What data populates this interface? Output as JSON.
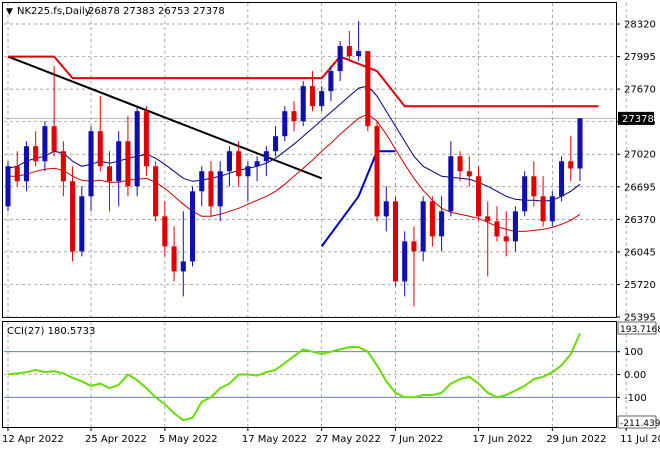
{
  "header": {
    "symbol": "NK225.fs,Daily",
    "ohlc": "26878 27383 26753 27378"
  },
  "cci_header": "CCI(27) 180.5733",
  "colors": {
    "up_candle": "#1010b0",
    "down_candle": "#e00000",
    "ma_fast": "#000080",
    "ma_slow": "#cc0000",
    "step_red": "#dd0000",
    "step_blue": "#0000cc",
    "trendline": "#000000",
    "cci_line": "#66dd00",
    "price_label_bg": "#000000"
  },
  "chart_data": [
    {
      "type": "candlestick",
      "ylim": [
        25395,
        28450
      ],
      "y_ticks": [
        28320,
        27995,
        27670,
        27345,
        27020,
        26695,
        26370,
        26045,
        25720,
        25395
      ],
      "x_labels": [
        "12 Apr 2022",
        "25 Apr 2022",
        "5 May 2022",
        "17 May 2022",
        "27 May 2022",
        "7 Jun 2022",
        "17 Jun 2022",
        "29 Jun 2022",
        "11 Jul 2022"
      ],
      "x_label_index": [
        0,
        9,
        17,
        26,
        34,
        42,
        51,
        59,
        67
      ],
      "current_price": "27378",
      "current_value": 27378,
      "candles": [
        [
          26500,
          26950,
          26450,
          26900
        ],
        [
          26900,
          27050,
          26700,
          26750
        ],
        [
          26750,
          27150,
          26650,
          27100
        ],
        [
          27100,
          27250,
          26900,
          26950
        ],
        [
          26950,
          27350,
          26850,
          27300
        ],
        [
          27300,
          27900,
          27000,
          27050
        ],
        [
          27050,
          27150,
          26600,
          26750
        ],
        [
          26750,
          26900,
          25950,
          26050
        ],
        [
          26050,
          26700,
          26000,
          26600
        ],
        [
          26600,
          27300,
          26450,
          27250
        ],
        [
          27250,
          27600,
          26850,
          26900
        ],
        [
          26900,
          27050,
          26450,
          26750
        ],
        [
          26750,
          27250,
          26500,
          27150
        ],
        [
          27150,
          27400,
          26600,
          26700
        ],
        [
          26700,
          27500,
          26600,
          27450
        ],
        [
          27450,
          27500,
          26800,
          26900
        ],
        [
          26900,
          26950,
          26350,
          26400
        ],
        [
          26400,
          26550,
          26000,
          26100
        ],
        [
          26100,
          26300,
          25750,
          25850
        ],
        [
          25850,
          26450,
          25600,
          25950
        ],
        [
          25950,
          26700,
          25900,
          26650
        ],
        [
          26650,
          26900,
          26500,
          26850
        ],
        [
          26850,
          26950,
          26400,
          26500
        ],
        [
          26500,
          26950,
          26350,
          26850
        ],
        [
          26850,
          27100,
          26700,
          27050
        ],
        [
          27050,
          27150,
          26700,
          26800
        ],
        [
          26800,
          26950,
          26550,
          26900
        ],
        [
          26900,
          27000,
          26750,
          26950
        ],
        [
          26950,
          27100,
          26800,
          27050
        ],
        [
          27050,
          27300,
          27000,
          27200
        ],
        [
          27200,
          27500,
          27150,
          27450
        ],
        [
          27450,
          27550,
          27250,
          27350
        ],
        [
          27350,
          27750,
          27300,
          27700
        ],
        [
          27700,
          27850,
          27450,
          27500
        ],
        [
          27500,
          27700,
          27450,
          27650
        ],
        [
          27650,
          27900,
          27550,
          27850
        ],
        [
          27850,
          28150,
          27750,
          28100
        ],
        [
          28100,
          28250,
          27950,
          28000
        ],
        [
          28000,
          28350,
          27950,
          28050
        ],
        [
          28050,
          28050,
          27250,
          27300
        ],
        [
          27300,
          27350,
          26350,
          26400
        ],
        [
          26400,
          26700,
          26250,
          26550
        ],
        [
          26550,
          26600,
          25700,
          25750
        ],
        [
          25750,
          26250,
          25600,
          26150
        ],
        [
          26150,
          26300,
          25500,
          26050
        ],
        [
          26050,
          26600,
          25950,
          26550
        ],
        [
          26550,
          26600,
          26100,
          26200
        ],
        [
          26200,
          26600,
          26050,
          26450
        ],
        [
          26450,
          27150,
          26400,
          27000
        ],
        [
          27000,
          27050,
          26750,
          26850
        ],
        [
          26850,
          27000,
          26700,
          26800
        ],
        [
          26800,
          26900,
          26350,
          26400
        ],
        [
          26400,
          26550,
          25800,
          26350
        ],
        [
          26350,
          26500,
          26150,
          26200
        ],
        [
          26200,
          26450,
          26000,
          26150
        ],
        [
          26150,
          26500,
          26050,
          26450
        ],
        [
          26450,
          26850,
          26400,
          26800
        ],
        [
          26800,
          26950,
          26500,
          26600
        ],
        [
          26600,
          26800,
          26300,
          26350
        ],
        [
          26350,
          26650,
          26300,
          26600
        ],
        [
          26600,
          27000,
          26550,
          26950
        ],
        [
          26950,
          27200,
          26750,
          26878
        ],
        [
          26878,
          27383,
          26753,
          27378
        ]
      ],
      "ma_fast": [
        26880,
        26900,
        26950,
        26980,
        27000,
        27050,
        27030,
        26950,
        26900,
        26920,
        26950,
        26930,
        26950,
        26980,
        27000,
        27020,
        26980,
        26920,
        26850,
        26780,
        26750,
        26760,
        26780,
        26800,
        26830,
        26860,
        26880,
        26900,
        26930,
        26980,
        27050,
        27120,
        27200,
        27280,
        27360,
        27440,
        27520,
        27600,
        27680,
        27700,
        27600,
        27450,
        27300,
        27150,
        27000,
        26900,
        26850,
        26800,
        26790,
        26780,
        26770,
        26740,
        26700,
        26650,
        26600,
        26570,
        26560,
        26560,
        26550,
        26560,
        26600,
        26650,
        26720
      ],
      "ma_slow": [
        26800,
        26800,
        26820,
        26850,
        26870,
        26880,
        26860,
        26800,
        26760,
        26750,
        26760,
        26740,
        26740,
        26760,
        26770,
        26780,
        26740,
        26680,
        26600,
        26520,
        26450,
        26400,
        26400,
        26420,
        26450,
        26480,
        26520,
        26560,
        26600,
        26650,
        26720,
        26800,
        26880,
        26960,
        27050,
        27130,
        27220,
        27300,
        27380,
        27420,
        27350,
        27220,
        27070,
        26920,
        26780,
        26660,
        26560,
        26480,
        26440,
        26420,
        26400,
        26380,
        26340,
        26300,
        26270,
        26250,
        26250,
        26260,
        26270,
        26290,
        26320,
        26360,
        26420
      ],
      "step_red": [
        [
          0,
          27995
        ],
        [
          5,
          27995
        ],
        [
          7,
          27780
        ],
        [
          34,
          27780
        ],
        [
          36,
          27995
        ],
        [
          40,
          27850
        ],
        [
          43,
          27500
        ],
        [
          64,
          27500
        ]
      ],
      "step_blue": [
        [
          34,
          26100
        ],
        [
          38,
          26600
        ],
        [
          40,
          27050
        ],
        [
          42,
          27050
        ]
      ],
      "trendline": [
        [
          0,
          27995
        ],
        [
          34,
          26780
        ]
      ]
    },
    {
      "type": "line",
      "name": "CCI(27)",
      "ylim": [
        -230,
        230
      ],
      "y_ticks": [
        {
          "v": 100,
          "label": "100"
        },
        {
          "v": 0,
          "label": "0.00"
        },
        {
          "v": -100,
          "label": "-100"
        }
      ],
      "level_label_top": "193.7168",
      "level_label_bottom": "-211.439",
      "values": [
        0,
        5,
        10,
        20,
        10,
        15,
        5,
        -15,
        -30,
        -50,
        -40,
        -60,
        -45,
        0,
        -25,
        -60,
        -100,
        -130,
        -170,
        -200,
        -190,
        -120,
        -100,
        -60,
        -40,
        0,
        0,
        -5,
        10,
        20,
        50,
        80,
        110,
        100,
        90,
        100,
        110,
        120,
        120,
        100,
        40,
        -30,
        -80,
        -100,
        -100,
        -90,
        -90,
        -80,
        -40,
        -20,
        -10,
        -40,
        -80,
        -100,
        -90,
        -70,
        -50,
        -20,
        -10,
        10,
        40,
        90,
        180
      ]
    }
  ]
}
